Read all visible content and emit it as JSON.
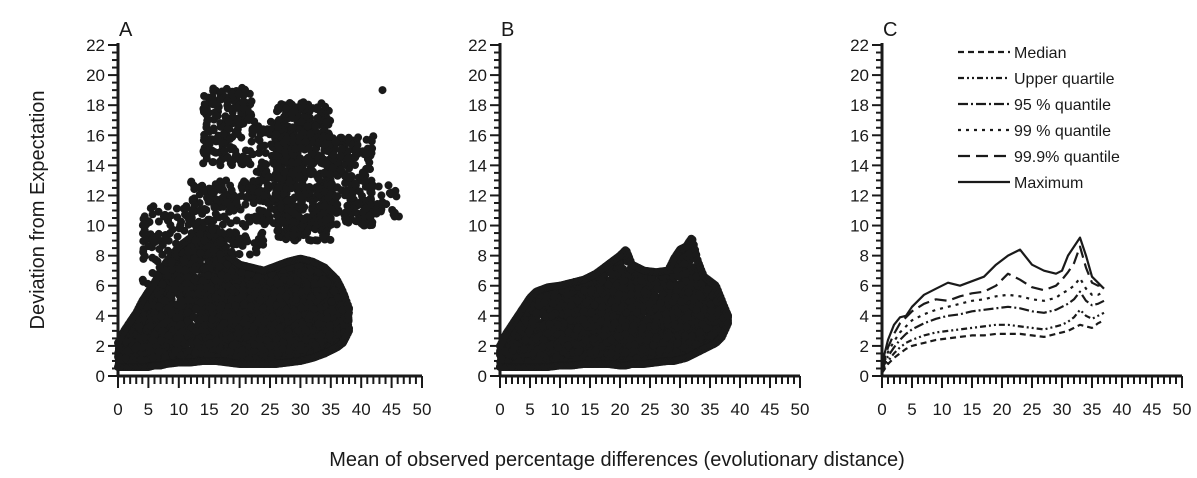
{
  "ylabel": "Deviation from Expectation",
  "xlabel": "Mean of observed percentage differences (evolutionary distance)",
  "chart_data": [
    {
      "panel": "A",
      "type": "scatter",
      "xlim": [
        0,
        50
      ],
      "ylim": [
        0,
        22
      ],
      "x_ticks": [
        0,
        5,
        10,
        15,
        20,
        25,
        30,
        35,
        40,
        45,
        50
      ],
      "y_ticks": [
        0,
        2,
        4,
        6,
        8,
        10,
        12,
        14,
        16,
        18,
        20,
        22
      ],
      "grid": false,
      "density_envelope": {
        "x": [
          0,
          1,
          2,
          3,
          4,
          5,
          6,
          7,
          8,
          10,
          12,
          14,
          16,
          18,
          20,
          22,
          24,
          26,
          28,
          30,
          32,
          34,
          36,
          37,
          38
        ],
        "lower": [
          0.6,
          0.6,
          0.6,
          0.6,
          0.6,
          0.6,
          0.7,
          0.7,
          0.8,
          0.9,
          0.9,
          1.0,
          1.0,
          0.9,
          0.8,
          0.8,
          0.8,
          0.8,
          0.9,
          1.0,
          1.2,
          1.5,
          1.9,
          2.2,
          3.0
        ],
        "upper": [
          2.2,
          3.0,
          3.6,
          4.2,
          5.0,
          5.6,
          6.2,
          7.0,
          7.6,
          8.6,
          9.2,
          9.6,
          9.4,
          8.0,
          7.4,
          7.2,
          7.0,
          7.3,
          7.6,
          7.8,
          7.6,
          7.2,
          6.4,
          5.6,
          4.5
        ]
      },
      "clusters": [
        {
          "x": [
            12,
            24
          ],
          "y": [
            8,
            13
          ],
          "n": 230
        },
        {
          "x": [
            14,
            22
          ],
          "y": [
            14,
            19.2
          ],
          "n": 180
        },
        {
          "x": [
            22,
            29
          ],
          "y": [
            10,
            17
          ],
          "n": 170
        },
        {
          "x": [
            26,
            35
          ],
          "y": [
            9,
            18.2
          ],
          "n": 500
        },
        {
          "x": [
            33,
            42
          ],
          "y": [
            10,
            16
          ],
          "n": 240
        },
        {
          "x": [
            38,
            46
          ],
          "y": [
            10.5,
            13
          ],
          "n": 40
        },
        {
          "x": [
            4,
            12
          ],
          "y": [
            6,
            11.5
          ],
          "n": 90
        }
      ],
      "outliers": [
        [
          43.5,
          19.0
        ],
        [
          46.2,
          10.6
        ],
        [
          45.5,
          10.6
        ],
        [
          15.8,
          12.2
        ],
        [
          30.5,
          18.2
        ]
      ]
    },
    {
      "panel": "B",
      "type": "scatter",
      "xlim": [
        0,
        50
      ],
      "ylim": [
        0,
        22
      ],
      "x_ticks": [
        0,
        5,
        10,
        15,
        20,
        25,
        30,
        35,
        40,
        45,
        50
      ],
      "y_ticks": [
        0,
        2,
        4,
        6,
        8,
        10,
        12,
        14,
        16,
        18,
        20,
        22
      ],
      "grid": false,
      "density_envelope": {
        "x": [
          0,
          1,
          2,
          3,
          4,
          5,
          6,
          8,
          10,
          12,
          14,
          16,
          18,
          20,
          21,
          22,
          24,
          26,
          28,
          29,
          30,
          31,
          32,
          33,
          34,
          36,
          37,
          38
        ],
        "lower": [
          0.6,
          0.6,
          0.6,
          0.6,
          0.6,
          0.6,
          0.6,
          0.6,
          0.7,
          0.7,
          0.8,
          0.8,
          0.8,
          0.7,
          0.7,
          0.8,
          0.8,
          0.9,
          1.0,
          1.0,
          1.1,
          1.2,
          1.4,
          1.6,
          1.8,
          2.2,
          2.6,
          3.5
        ],
        "upper": [
          2.0,
          2.8,
          3.4,
          4.0,
          4.6,
          5.2,
          5.6,
          5.9,
          6.0,
          6.2,
          6.4,
          6.8,
          7.4,
          8.0,
          8.4,
          7.4,
          7.0,
          6.9,
          7.0,
          7.8,
          8.4,
          8.6,
          9.2,
          7.6,
          6.6,
          6.0,
          5.0,
          4.0
        ]
      }
    },
    {
      "panel": "C",
      "type": "line",
      "xlim": [
        0,
        50
      ],
      "ylim": [
        0,
        22
      ],
      "x_ticks": [
        0,
        5,
        10,
        15,
        20,
        25,
        30,
        35,
        40,
        45,
        50
      ],
      "y_ticks": [
        0,
        2,
        4,
        6,
        8,
        10,
        12,
        14,
        16,
        18,
        20,
        22
      ],
      "grid": false,
      "legend": "top-right",
      "x": [
        0,
        1,
        2,
        3,
        4,
        5,
        7,
        9,
        11,
        13,
        15,
        17,
        19,
        21,
        23,
        25,
        27,
        29,
        30,
        31,
        32,
        33,
        34,
        35,
        36,
        37
      ],
      "series": [
        {
          "name": "Median",
          "dash": "6,4",
          "values": [
            0.2,
            0.8,
            1.2,
            1.5,
            1.8,
            2.0,
            2.2,
            2.4,
            2.5,
            2.6,
            2.7,
            2.7,
            2.8,
            2.8,
            2.8,
            2.7,
            2.6,
            2.8,
            2.9,
            3.0,
            3.2,
            3.4,
            3.3,
            3.2,
            3.5,
            3.7
          ]
        },
        {
          "name": "Upper quartile",
          "dash": "6,3,2,3,2,3",
          "values": [
            0.3,
            1.0,
            1.5,
            1.9,
            2.2,
            2.4,
            2.7,
            2.9,
            3.0,
            3.1,
            3.2,
            3.3,
            3.4,
            3.4,
            3.3,
            3.2,
            3.1,
            3.3,
            3.4,
            3.6,
            3.9,
            4.4,
            4.0,
            3.8,
            4.0,
            4.2
          ]
        },
        {
          "name": "95 % quantile",
          "dash": "10,3,2,3",
          "values": [
            0.4,
            1.3,
            1.9,
            2.4,
            2.8,
            3.1,
            3.5,
            3.8,
            4.0,
            4.1,
            4.3,
            4.4,
            4.5,
            4.6,
            4.5,
            4.3,
            4.2,
            4.4,
            4.6,
            4.8,
            5.1,
            5.6,
            5.0,
            4.7,
            4.8,
            5.0
          ]
        },
        {
          "name": "99 % quantile",
          "dash": "3,5",
          "values": [
            0.5,
            1.6,
            2.3,
            2.9,
            3.3,
            3.7,
            4.1,
            4.4,
            4.6,
            4.8,
            5.0,
            5.1,
            5.3,
            5.4,
            5.3,
            5.1,
            5.0,
            5.2,
            5.5,
            5.7,
            6.0,
            6.5,
            5.8,
            5.4,
            5.4,
            5.6
          ]
        },
        {
          "name": "99.9% quantile",
          "dash": "12,6",
          "values": [
            0.6,
            1.9,
            2.8,
            3.5,
            3.9,
            4.3,
            4.8,
            5.1,
            5.0,
            5.3,
            5.5,
            5.6,
            6.0,
            6.8,
            6.4,
            5.9,
            5.7,
            6.0,
            6.4,
            6.9,
            7.5,
            8.6,
            7.2,
            6.2,
            6.0,
            6.1
          ]
        },
        {
          "name": "Maximum",
          "dash": "",
          "values": [
            0.8,
            2.4,
            3.4,
            3.9,
            4.0,
            4.6,
            5.4,
            5.8,
            6.2,
            6.0,
            6.3,
            6.6,
            7.4,
            8.0,
            8.4,
            7.4,
            7.0,
            6.8,
            7.0,
            8.0,
            8.6,
            9.2,
            8.0,
            6.6,
            6.2,
            5.8
          ]
        }
      ]
    }
  ]
}
